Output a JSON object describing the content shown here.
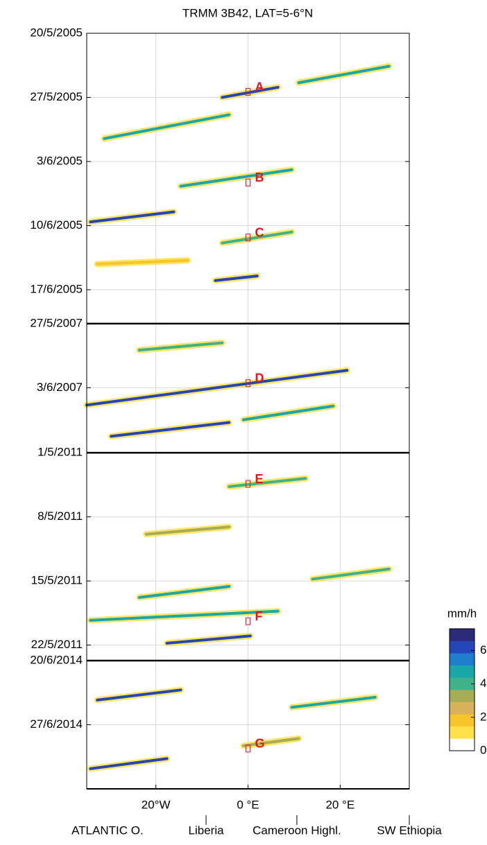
{
  "chart_data": {
    "type": "hovmoller",
    "title": "TRMM 3B42, LAT=5-6°N",
    "xlim": [
      -35,
      35
    ],
    "xticks": [
      {
        "value": -20,
        "label": "20°W"
      },
      {
        "value": 0,
        "label": "0 °E"
      },
      {
        "value": 20,
        "label": "20 °E"
      }
    ],
    "grid": true,
    "panels": [
      {
        "ylim": [
          0,
          31.7
        ],
        "yticks": [
          {
            "value": 0,
            "label": "20/5/2005"
          },
          {
            "value": 7,
            "label": "27/5/2005"
          },
          {
            "value": 14,
            "label": "3/6/2005"
          },
          {
            "value": 21,
            "label": "10/6/2005"
          },
          {
            "value": 28,
            "label": "17/6/2005"
          }
        ],
        "streaks": [
          {
            "lon": [
              -5.6,
              6.5
            ],
            "day": [
              7,
              5.9
            ],
            "rate": 6
          },
          {
            "lon": [
              11,
              30.6
            ],
            "day": [
              5.4,
              3.6
            ],
            "rate": 5
          },
          {
            "lon": [
              -31.2,
              -4.1
            ],
            "day": [
              11.5,
              8.9
            ],
            "rate": 5
          },
          {
            "lon": [
              -14.6,
              9.5
            ],
            "day": [
              16.7,
              14.9
            ],
            "rate": 5
          },
          {
            "lon": [
              -34.2,
              -16.1
            ],
            "day": [
              20.6,
              19.5
            ],
            "rate": 6
          },
          {
            "lon": [
              -5.6,
              9.5
            ],
            "day": [
              22.9,
              21.7
            ],
            "rate": 4
          },
          {
            "lon": [
              -32.7,
              -13.1
            ],
            "day": [
              25.2,
              24.8
            ],
            "rate": 2
          },
          {
            "lon": [
              -7.1,
              2
            ],
            "day": [
              27,
              26.5
            ],
            "rate": 6
          }
        ],
        "events": [
          {
            "label": "A",
            "lon": 0,
            "day": 6.4
          },
          {
            "label": "B",
            "lon": 0,
            "day": 16.3
          },
          {
            "label": "C",
            "lon": 0,
            "day": 22.3
          }
        ]
      },
      {
        "ylim": [
          0,
          14.1
        ],
        "yticks": [
          {
            "value": 0,
            "label": "27/5/2007"
          },
          {
            "value": 7,
            "label": "3/6/2007"
          }
        ],
        "streaks": [
          {
            "lon": [
              -35,
              21.5
            ],
            "day": [
              8.9,
              5.1
            ],
            "rate": 6
          },
          {
            "lon": [
              -29.7,
              -4.1
            ],
            "day": [
              12.3,
              10.8
            ],
            "rate": 6
          },
          {
            "lon": [
              -1,
              18.5
            ],
            "day": [
              10.5,
              9
            ],
            "rate": 5
          },
          {
            "lon": [
              -23.6,
              -5.6
            ],
            "day": [
              2.9,
              2.1
            ],
            "rate": 4
          }
        ],
        "events": [
          {
            "label": "D",
            "lon": 0,
            "day": 6.5
          }
        ]
      },
      {
        "ylim": [
          0,
          22.7
        ],
        "yticks": [
          {
            "value": 0,
            "label": "1/5/2011"
          },
          {
            "value": 7,
            "label": "8/5/2011"
          },
          {
            "value": 14,
            "label": "15/5/2011"
          },
          {
            "value": 21,
            "label": "22/5/2011"
          }
        ],
        "streaks": [
          {
            "lon": [
              -4.1,
              12.5
            ],
            "day": [
              3.7,
              2.8
            ],
            "rate": 4
          },
          {
            "lon": [
              -22.1,
              -4.1
            ],
            "day": [
              8.9,
              8.1
            ],
            "rate": 3
          },
          {
            "lon": [
              -23.6,
              -4.1
            ],
            "day": [
              15.8,
              14.6
            ],
            "rate": 5
          },
          {
            "lon": [
              -34.2,
              6.5
            ],
            "day": [
              18.3,
              17.3
            ],
            "rate": 5
          },
          {
            "lon": [
              -17.6,
              0.5
            ],
            "day": [
              20.8,
              20
            ],
            "rate": 6
          },
          {
            "lon": [
              14,
              30.6
            ],
            "day": [
              13.8,
              12.7
            ],
            "rate": 4
          }
        ],
        "events": [
          {
            "label": "E",
            "lon": 0,
            "day": 3.4
          },
          {
            "label": "F",
            "lon": 0,
            "day": 18.4
          }
        ]
      },
      {
        "ylim": [
          0,
          14
        ],
        "yticks": [
          {
            "value": 0,
            "label": "20/6/2014"
          },
          {
            "value": 7,
            "label": "27/6/2014"
          }
        ],
        "streaks": [
          {
            "lon": [
              -32.7,
              -14.6
            ],
            "day": [
              4.3,
              3.2
            ],
            "rate": 6
          },
          {
            "lon": [
              -1,
              11
            ],
            "day": [
              9.3,
              8.5
            ],
            "rate": 3
          },
          {
            "lon": [
              -34.2,
              -17.6
            ],
            "day": [
              11.8,
              10.7
            ],
            "rate": 6
          },
          {
            "lon": [
              9.5,
              27.6
            ],
            "day": [
              5.1,
              4
            ],
            "rate": 5
          }
        ],
        "events": [
          {
            "label": "G",
            "lon": 0,
            "day": 9.6
          }
        ]
      }
    ],
    "regions": [
      {
        "label": "ATLANTIC O.",
        "lon": -30.5
      },
      {
        "label": "Liberia",
        "lon": -9.1
      },
      {
        "label": "Cameroon Highl.",
        "lon": 10.6
      },
      {
        "label": "SW Ethiopia",
        "lon": 35
      }
    ],
    "region_ticks": [
      -9.1,
      10.6,
      35
    ],
    "colorbar": {
      "label": "mm/h",
      "lim": [
        0,
        7.3
      ],
      "ticks": [
        0,
        2,
        4,
        6
      ],
      "colors": [
        "#ffffff",
        "#ffe14d",
        "#f7c52a",
        "#d8b25a",
        "#a7ad55",
        "#3fb28a",
        "#1aa7a8",
        "#1f7fcf",
        "#2546b8",
        "#2a2a78"
      ]
    },
    "event_color": "#e8141e"
  }
}
